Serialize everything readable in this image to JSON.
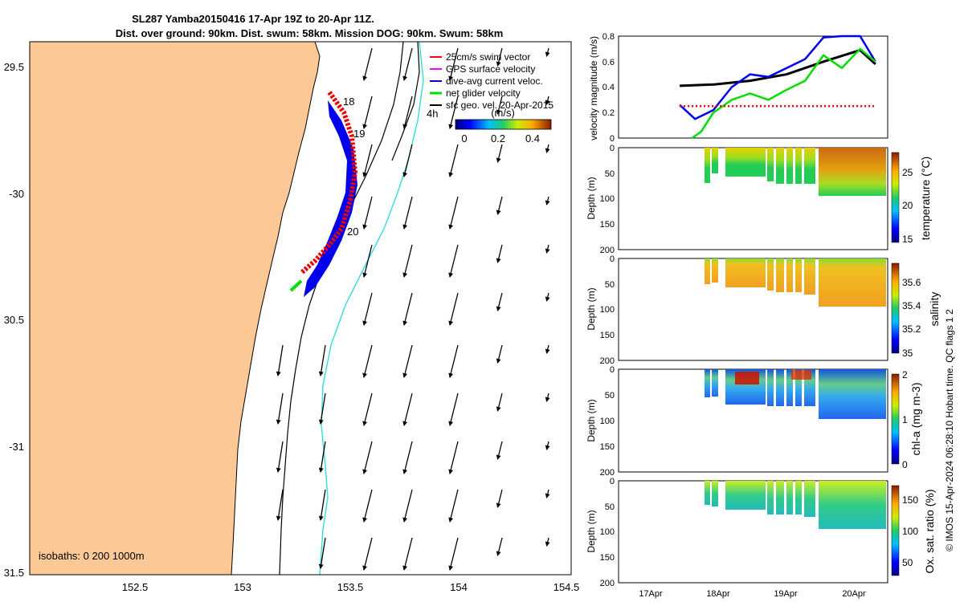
{
  "title_line1": "SL287 Yamba20150416 17-Apr 19Z to 20-Apr 11Z.",
  "title_line2": "Dist. over ground: 90km. Dist. swum: 58km. Mission DOG: 90km. Swum: 58km",
  "map": {
    "lat_ticks": [
      "29.5",
      "-30",
      "30.5",
      "-31",
      "31.5"
    ],
    "lon_ticks": [
      "152.5",
      "153",
      "153.5",
      "154",
      "154.5"
    ],
    "isobaths_label": "isobaths: 0   200  1000m",
    "legend": [
      {
        "label": "25cm/s swim vector",
        "color": "#ff0000"
      },
      {
        "label": "GPS surface velocity",
        "color": "#ff00ff"
      },
      {
        "label": "dive-avg current veloc.",
        "color": "#0000cc"
      },
      {
        "label": "net glider velocity",
        "color": "#00dd00"
      },
      {
        "label": "sfc geo. vel. 20-Apr-2015",
        "color": "#000000"
      }
    ],
    "day_labels": [
      "18",
      "19",
      "20"
    ],
    "duration_label": "4h",
    "colorbar": {
      "unit": "(m/s)",
      "ticks": [
        "0",
        "0.2",
        "0.4"
      ]
    },
    "colors": {
      "land": "#fbc896",
      "coast": "#000000",
      "isobath_200": "#000000",
      "isobath_1000": "#33dddd",
      "track_blue": "#0000ee",
      "track_red": "#ee0000"
    }
  },
  "velocity_panel": {
    "ylabel": "velocity magnitude (m/s)",
    "yticks": [
      "0.8",
      "0.6",
      "0.4",
      "0.2",
      "0"
    ],
    "ylim": [
      0,
      0.8
    ]
  },
  "profile_panels": [
    {
      "ylabel": "Depth (m)",
      "cblabel": "temperature (°C)",
      "cbticks": [
        "25",
        "20",
        "15"
      ],
      "yticks": [
        "0",
        "50",
        "100",
        "150",
        "200"
      ]
    },
    {
      "ylabel": "Depth (m)",
      "cblabel": "salinity",
      "cbticks": [
        "35.6",
        "35.4",
        "35.2",
        "35"
      ],
      "yticks": [
        "0",
        "50",
        "100",
        "150",
        "200"
      ]
    },
    {
      "ylabel": "Depth (m)",
      "cblabel": "chl-a (mg m-3)",
      "cbticks": [
        "2",
        "1",
        "0"
      ],
      "yticks": [
        "0",
        "50",
        "100",
        "150",
        "200"
      ]
    },
    {
      "ylabel": "Depth (m)",
      "cblabel": "Ox. sat. ratio (%)",
      "cbticks": [
        "150",
        "100",
        "50"
      ],
      "yticks": [
        "0",
        "50",
        "100",
        "150",
        "200"
      ]
    }
  ],
  "time_ticks": [
    "17Apr",
    "18Apr",
    "19Apr",
    "20Apr"
  ],
  "side_note": "© IMOS 15-Apr-2024 06:28:10 Hobart time. QC flags 1  2",
  "chart_data": {
    "type": "line",
    "title": "SL287 Yamba20150416 17-Apr 19Z to 20-Apr 11Z.",
    "ylabel": "velocity magnitude (m/s)",
    "ylim": [
      0,
      0.8
    ],
    "xlim": [
      "2015-04-16T23:00",
      "2015-04-20T15:00"
    ],
    "x_tick_labels": [
      "17Apr",
      "18Apr",
      "19Apr",
      "20Apr"
    ],
    "series": [
      {
        "color": "#000000",
        "x": [
          "2015-04-17T19:00",
          "2015-04-18T06:00",
          "2015-04-18T18:00",
          "2015-04-19T06:00",
          "2015-04-19T18:00",
          "2015-04-20T06:00",
          "2015-04-20T11:00"
        ],
        "values": [
          0.41,
          0.42,
          0.45,
          0.5,
          0.6,
          0.69,
          0.58
        ]
      },
      {
        "color": "#0000ee",
        "x": [
          "2015-04-17T19:00",
          "2015-04-18T00:00",
          "2015-04-18T06:00",
          "2015-04-18T12:00",
          "2015-04-18T18:00",
          "2015-04-19T00:00",
          "2015-04-19T12:00",
          "2015-04-19T18:00",
          "2015-04-20T00:00",
          "2015-04-20T06:00",
          "2015-04-20T11:00"
        ],
        "values": [
          0.26,
          0.15,
          0.22,
          0.4,
          0.5,
          0.48,
          0.62,
          0.79,
          0.8,
          0.8,
          0.6
        ]
      },
      {
        "color": "#00dd00",
        "x": [
          "2015-04-17T23:00",
          "2015-04-18T02:00",
          "2015-04-18T06:00",
          "2015-04-18T12:00",
          "2015-04-18T18:00",
          "2015-04-19T00:00",
          "2015-04-19T06:00",
          "2015-04-19T12:00",
          "2015-04-19T18:00",
          "2015-04-20T00:00",
          "2015-04-20T06:00",
          "2015-04-20T11:00"
        ],
        "values": [
          0.0,
          0.05,
          0.2,
          0.3,
          0.35,
          0.3,
          0.38,
          0.45,
          0.65,
          0.55,
          0.7,
          0.6
        ]
      },
      {
        "color": "#ee0000",
        "x": [
          "2015-04-17T19:00",
          "2015-04-18T12:00",
          "2015-04-19T12:00",
          "2015-04-20T11:00"
        ],
        "values": [
          0.25,
          0.25,
          0.25,
          0.25
        ]
      }
    ]
  }
}
